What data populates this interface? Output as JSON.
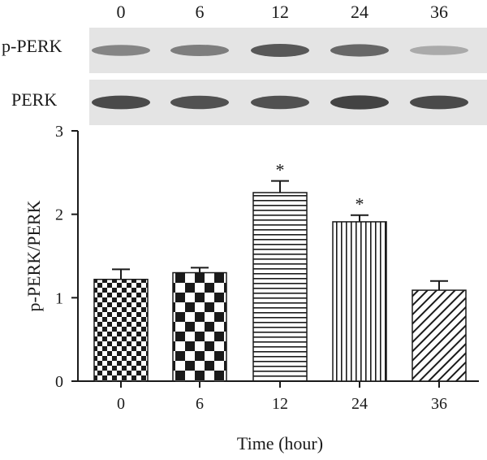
{
  "blot": {
    "lanes": [
      "0",
      "6",
      "12",
      "24",
      "36"
    ],
    "rows": [
      {
        "label": "p-PERK",
        "band_intensity": [
          0.45,
          0.5,
          0.75,
          0.65,
          0.2
        ]
      },
      {
        "label": "PERK",
        "band_intensity": [
          0.85,
          0.8,
          0.8,
          0.9,
          0.85
        ]
      }
    ]
  },
  "chart_data": {
    "type": "bar",
    "categories": [
      "0",
      "6",
      "12",
      "24",
      "36"
    ],
    "values": [
      1.22,
      1.3,
      2.26,
      1.91,
      1.09
    ],
    "errors": [
      0.12,
      0.06,
      0.14,
      0.08,
      0.11
    ],
    "significance": [
      "",
      "",
      "*",
      "*",
      ""
    ],
    "patterns": [
      "small-checker",
      "large-checker",
      "horizontal-lines",
      "vertical-lines",
      "diagonal-lines"
    ],
    "title": "",
    "xlabel": "Time (hour)",
    "ylabel": "p-PERK/PERK",
    "ylim": [
      0,
      3
    ],
    "yticks": [
      0,
      1,
      2,
      3
    ],
    "grid": false,
    "legend": "none"
  },
  "colors": {
    "ink": "#1a1a1a",
    "band": "#2a2a2a",
    "strip": "#e4e4e4"
  }
}
